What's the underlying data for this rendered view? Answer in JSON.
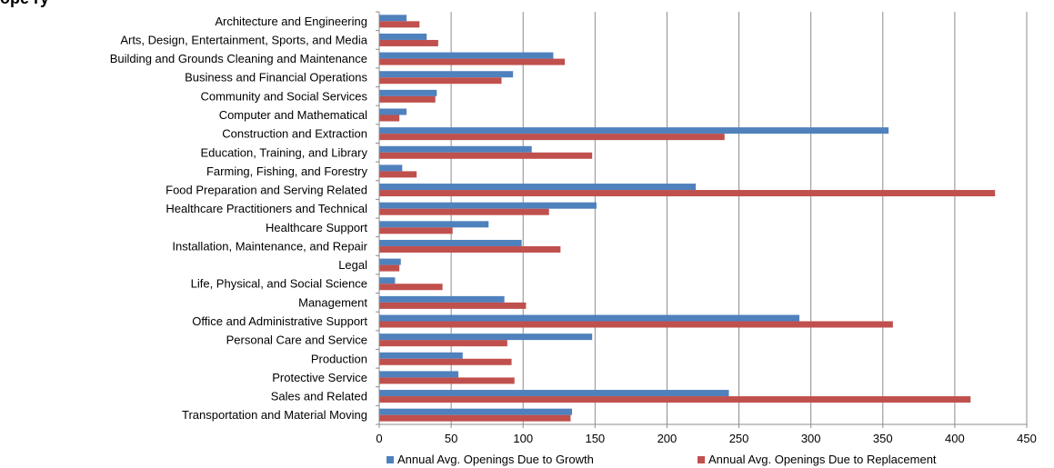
{
  "chart_data": {
    "type": "bar",
    "orientation": "horizontal",
    "title_fragment": "ope               ry",
    "categories": [
      "Architecture and Engineering",
      "Arts, Design, Entertainment, Sports, and Media",
      "Building and Grounds Cleaning and Maintenance",
      "Business and Financial Operations",
      "Community and Social Services",
      "Computer and Mathematical",
      "Construction and Extraction",
      "Education, Training, and Library",
      "Farming, Fishing, and Forestry",
      "Food Preparation and Serving Related",
      "Healthcare Practitioners and Technical",
      "Healthcare Support",
      "Installation, Maintenance, and Repair",
      "Legal",
      "Life, Physical, and Social Science",
      "Management",
      "Office and Administrative Support",
      "Personal Care and Service",
      "Production",
      "Protective Service",
      "Sales and Related",
      "Transportation and Material Moving"
    ],
    "series": [
      {
        "name": "Annual Avg. Openings Due to Growth",
        "color": "#4F81BD",
        "values": [
          19,
          33,
          121,
          93,
          40,
          19,
          354,
          106,
          16,
          220,
          151,
          76,
          99,
          15,
          11,
          87,
          292,
          148,
          58,
          55,
          243,
          134
        ]
      },
      {
        "name": "Annual Avg. Openings Due to Replacement",
        "color": "#C0504D",
        "values": [
          28,
          41,
          129,
          85,
          39,
          14,
          240,
          148,
          26,
          428,
          118,
          51,
          126,
          14,
          44,
          102,
          357,
          89,
          92,
          94,
          411,
          133
        ]
      }
    ],
    "xlim": [
      0,
      450
    ],
    "xticks": [
      "0",
      "50",
      "100",
      "150",
      "200",
      "250",
      "300",
      "350",
      "400",
      "450"
    ],
    "xlabel": "",
    "ylabel": "",
    "grid": "vertical",
    "legend_position": "bottom"
  }
}
